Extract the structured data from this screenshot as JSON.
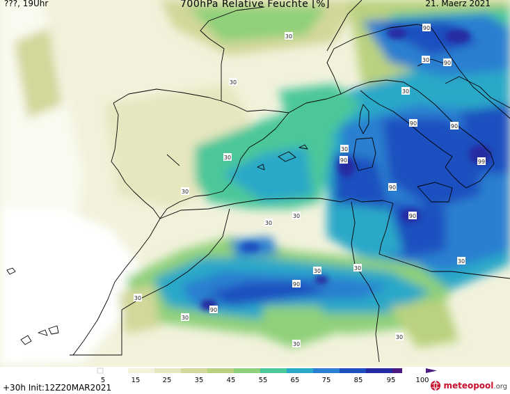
{
  "header": {
    "left": "???, 19Uhr",
    "title": "700hPa Relative Feuchte [%]",
    "date": "21. Maerz 2021"
  },
  "footer": {
    "run_info": "+30h  Init:12Z20MAR2021",
    "logo_name": "meteopool",
    "logo_tld": ".org"
  },
  "legend": {
    "ticks": [
      "5",
      "15",
      "25",
      "35",
      "45",
      "55",
      "65",
      "75",
      "85",
      "95",
      "100"
    ],
    "colors": [
      "#ffffff",
      "#f2f2dc",
      "#e6e6bf",
      "#d2d79a",
      "#b9d27f",
      "#8fd07a",
      "#4cc79a",
      "#2aa8c8",
      "#2a7fd0",
      "#1f4fbf",
      "#262aa0",
      "#4a1a80"
    ]
  },
  "map": {
    "contour_labels": [
      "30",
      "30",
      "30",
      "30",
      "30",
      "30",
      "30",
      "30",
      "30",
      "30",
      "30",
      "30",
      "30",
      "30",
      "30",
      "30",
      "90",
      "90",
      "90",
      "90",
      "90",
      "90",
      "90",
      "90",
      "90",
      "99"
    ]
  }
}
